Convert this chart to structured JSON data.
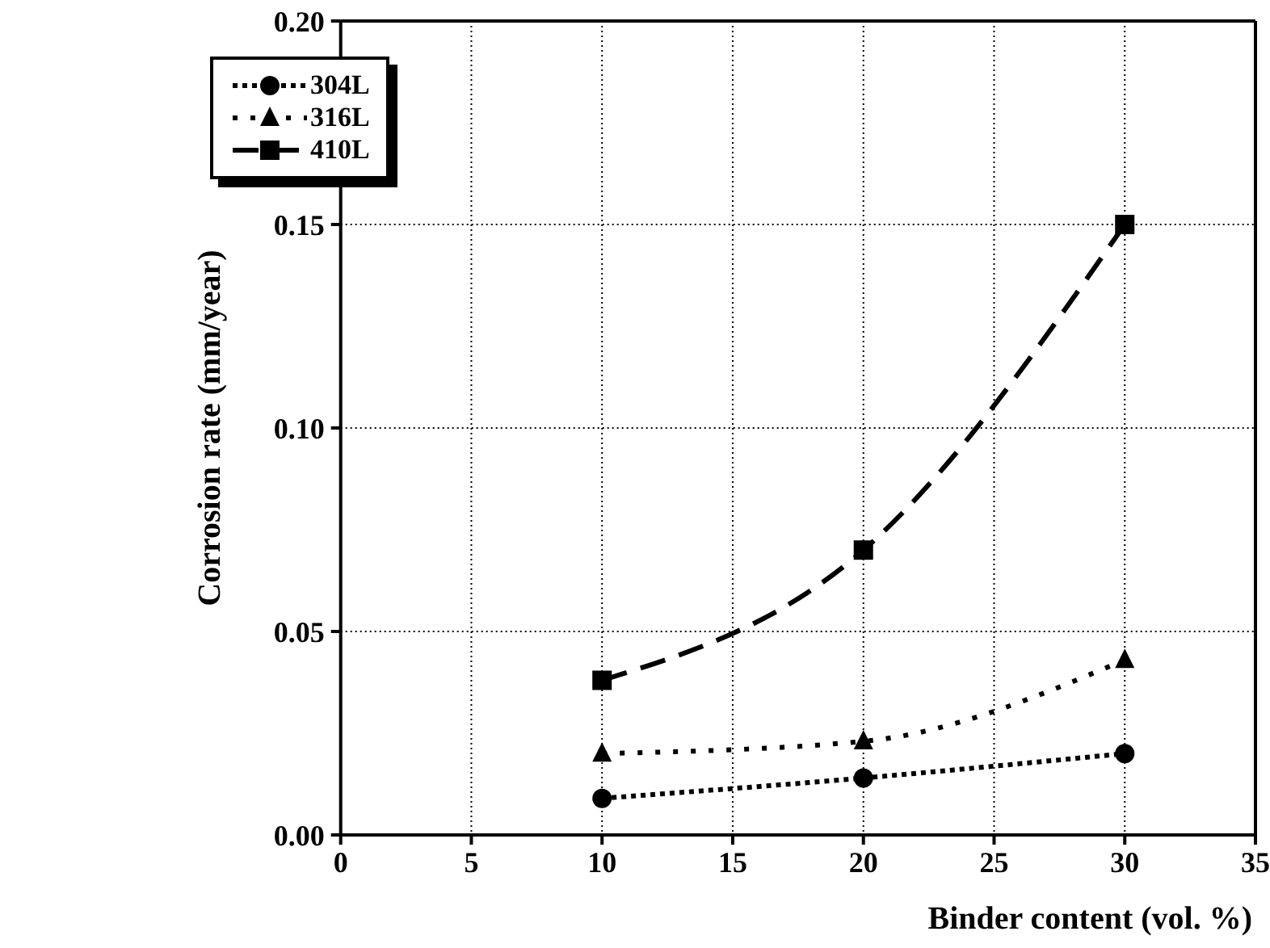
{
  "chart_data": {
    "type": "line",
    "xlabel": "Binder content (vol. %)",
    "ylabel": "Corrosion rate (mm/year)",
    "x": [
      10,
      20,
      30
    ],
    "series": [
      {
        "name": "304L",
        "color": "#000000",
        "values": [
          0.009,
          0.014,
          0.02
        ],
        "marker": "circle",
        "line_style": "dotted"
      },
      {
        "name": "316L",
        "color": "#000000",
        "values": [
          0.02,
          0.023,
          0.043
        ],
        "marker": "triangle",
        "line_style": "dotted"
      },
      {
        "name": "410L",
        "color": "#000000",
        "values": [
          0.038,
          0.07,
          0.15
        ],
        "marker": "square",
        "line_style": "dashed"
      }
    ],
    "xlim": [
      0,
      35
    ],
    "xticks": [
      0,
      5,
      10,
      15,
      20,
      25,
      30,
      35
    ],
    "ylim": [
      0,
      0.2
    ],
    "yticks": [
      {
        "value": 0,
        "label": "0.00"
      },
      {
        "value": 0.05,
        "label": "0.05"
      },
      {
        "value": 0.1,
        "label": "0.10"
      },
      {
        "value": 0.15,
        "label": "0.15"
      },
      {
        "value": 0.2,
        "label": "0.20"
      }
    ],
    "grid": true,
    "legend": "top left"
  }
}
